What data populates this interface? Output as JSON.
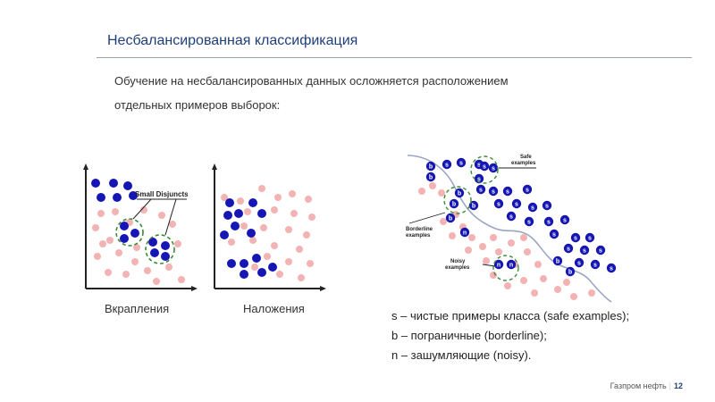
{
  "slide": {
    "title": "Несбалансированная классификация",
    "intro_line1": "Обучение на несбалансированных данных осложняется расположением",
    "intro_line2": "отдельных примеров выборок:"
  },
  "figures": {
    "left": {
      "annotation": "Small Disjuncts",
      "caption": "Вкрапления"
    },
    "middle": {
      "caption": "Наложения"
    },
    "right": {
      "safe_label": [
        "Safe",
        "examples"
      ],
      "borderline_label": [
        "Borderline",
        "examples"
      ],
      "noisy_label": [
        "Noisy",
        "examples"
      ],
      "safe_letter": "s",
      "borderline_letter": "b",
      "noisy_letter": "n"
    }
  },
  "legend": {
    "line1": "s – чистые примеры класса (safe examples);",
    "line2": "b – пограничные (borderline);",
    "line3": "n – зашумляющие (noisy)."
  },
  "footer": {
    "company": "Газпром нефть",
    "separator": "|",
    "page": "12"
  },
  "colors": {
    "minority": "#1616b4",
    "majority": "#f4b3b3",
    "ring": "#3c8c3c",
    "boundary": "#9aa6c4",
    "title": "#1f3f7a"
  }
}
